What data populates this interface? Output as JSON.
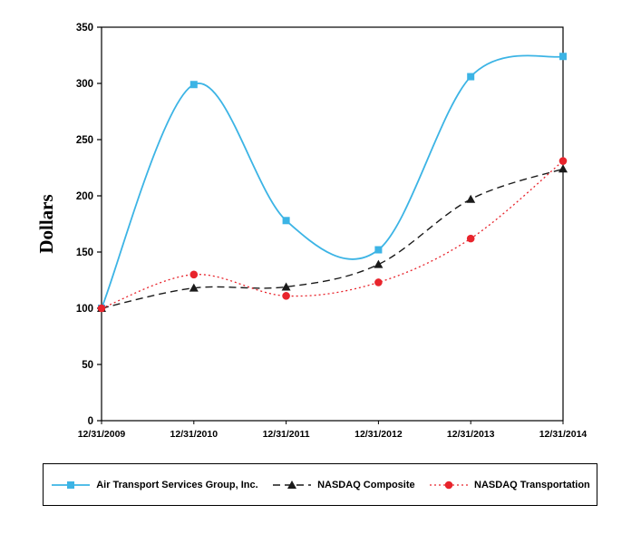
{
  "chart_data": {
    "type": "line",
    "title": "",
    "xlabel": "",
    "ylabel": "Dollars",
    "categories": [
      "12/31/2009",
      "12/31/2010",
      "12/31/2011",
      "12/31/2012",
      "12/31/2013",
      "12/31/2014"
    ],
    "ylim": [
      0,
      350
    ],
    "ytick_step": 50,
    "yticks": [
      0,
      50,
      100,
      150,
      200,
      250,
      300,
      350
    ],
    "grid": "off",
    "legend_position": "bottom",
    "plot_border_color": "#000000",
    "smooth": true,
    "series": [
      {
        "name": "Air Transport Services Group, Inc.",
        "values": [
          100,
          299,
          178,
          152,
          306,
          324
        ],
        "color": "#3CB4E5",
        "marker": "square",
        "line_style": "solid",
        "line_width": 1.8
      },
      {
        "name": "NASDAQ Composite",
        "values": [
          100,
          118,
          119,
          139,
          197,
          224
        ],
        "color": "#1a1a1a",
        "marker": "triangle",
        "line_style": "dashed",
        "line_width": 1.4
      },
      {
        "name": "NASDAQ Transportation",
        "values": [
          100,
          130,
          111,
          123,
          162,
          231
        ],
        "color": "#E8242C",
        "marker": "circle",
        "line_style": "dotted",
        "line_width": 1.3
      }
    ]
  }
}
